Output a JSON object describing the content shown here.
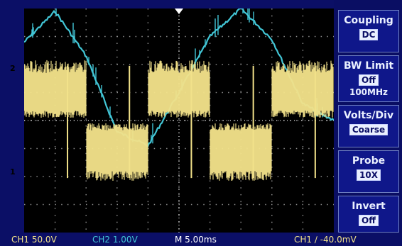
{
  "colors": {
    "ch1": "#f2e28a",
    "ch2": "#42c6d6",
    "grid": "#8a8a8a",
    "panel_bg": "#0b0f66",
    "screen_bg": "#000000"
  },
  "markers": {
    "ch2": "2",
    "ch1": "1"
  },
  "menu": [
    {
      "title": "Coupling",
      "value": "DC",
      "sub": ""
    },
    {
      "title": "BW Limit",
      "value": "Off",
      "sub": "100MHz"
    },
    {
      "title": "Volts/Div",
      "value": "Coarse",
      "sub": ""
    },
    {
      "title": "Probe",
      "value": "10X",
      "sub": ""
    },
    {
      "title": "Invert",
      "value": "Off",
      "sub": ""
    }
  ],
  "status": {
    "ch1_scale": "CH1  50.0V",
    "ch2_scale": "CH2  1.00V",
    "timebase": "M 5.00ms",
    "trigger": "CH1  ∕  -40.0mV"
  },
  "chart_data": {
    "type": "line",
    "series": [
      {
        "channel": "CH2",
        "x": [
          0,
          5,
          10,
          15,
          20,
          25,
          30,
          35,
          40,
          45,
          50
        ],
        "y": [
          2.8,
          3.9,
          2.3,
          -0.4,
          -0.9,
          1.0,
          3.0,
          4.0,
          2.9,
          0.6,
          0.0
        ]
      },
      {
        "channel": "CH1",
        "x": [
          0,
          7,
          10,
          17,
          20,
          27,
          30,
          37,
          40,
          47,
          50
        ],
        "y": [
          1.7,
          1.7,
          -1.8,
          -1.8,
          1.7,
          1.7,
          -1.8,
          -1.8,
          1.7,
          1.7,
          -1.8
        ]
      }
    ],
    "x_unit": "ms",
    "x_range": [
      0,
      50
    ],
    "grid": true
  }
}
